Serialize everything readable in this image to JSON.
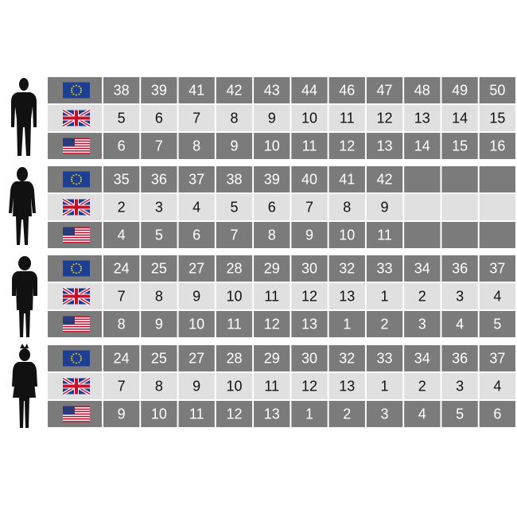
{
  "groups": [
    {
      "rows": [
        [
          38,
          39,
          41,
          42,
          43,
          44,
          46,
          47,
          48,
          49,
          50
        ],
        [
          5,
          6,
          7,
          8,
          9,
          10,
          11,
          12,
          13,
          14,
          15
        ],
        [
          6,
          7,
          8,
          9,
          10,
          11,
          12,
          13,
          14,
          15,
          16
        ]
      ]
    },
    {
      "rows": [
        [
          35,
          36,
          37,
          38,
          39,
          40,
          41,
          42
        ],
        [
          2,
          3,
          4,
          5,
          6,
          7,
          8,
          9
        ],
        [
          4,
          5,
          6,
          7,
          8,
          9,
          10,
          11
        ]
      ]
    },
    {
      "rows": [
        [
          24,
          25,
          27,
          28,
          29,
          30,
          32,
          33,
          34,
          36,
          37
        ],
        [
          7,
          8,
          9,
          10,
          11,
          12,
          13,
          1,
          2,
          3,
          4
        ],
        [
          8,
          9,
          10,
          11,
          12,
          13,
          1,
          2,
          3,
          4,
          5
        ]
      ]
    },
    {
      "rows": [
        [
          24,
          25,
          27,
          28,
          29,
          30,
          32,
          33,
          34,
          36,
          37
        ],
        [
          7,
          8,
          9,
          10,
          11,
          12,
          13,
          1,
          2,
          3,
          4
        ],
        [
          9,
          10,
          11,
          12,
          13,
          1,
          2,
          3,
          4,
          5,
          6
        ]
      ]
    }
  ]
}
